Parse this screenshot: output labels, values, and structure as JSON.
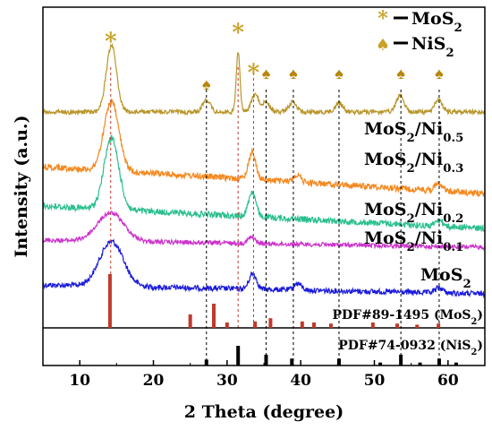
{
  "chart_data": {
    "type": "line",
    "xlabel": "2 Theta (degree)",
    "ylabel": "Intensity (a.u.)",
    "xlim": [
      5,
      65
    ],
    "x_ticks": [
      10,
      20,
      30,
      40,
      50,
      60
    ],
    "grid": false,
    "legend_position": "top-right",
    "legend": [
      {
        "marker": "asterisk",
        "label": "MoS",
        "sub": "2",
        "color": "#b8860b"
      },
      {
        "marker": "spade",
        "label": "NiS",
        "sub": "2",
        "color": "#b8860b"
      }
    ],
    "series": [
      {
        "label_main": "MoS",
        "label_sub": "2",
        "label_tail": "",
        "label_sub2": "",
        "color": "#1a1adc",
        "peaks": [
          {
            "x": 14.3,
            "h": 1.0
          },
          {
            "x": 33.5,
            "h": 0.35
          },
          {
            "x": 39.6,
            "h": 0.15
          },
          {
            "x": 58.8,
            "h": 0.12
          }
        ]
      },
      {
        "label_main": "MoS",
        "label_sub": "2",
        "label_tail": "/Ni",
        "label_sub2": "0.1",
        "color": "#cc33cc",
        "peaks": [
          {
            "x": 14.2,
            "h": 0.7
          },
          {
            "x": 33.3,
            "h": 0.15
          }
        ]
      },
      {
        "label_main": "MoS",
        "label_sub": "2",
        "label_tail": "/Ni",
        "label_sub2": "0.2",
        "color": "#2bbf8e",
        "peaks": [
          {
            "x": 14.3,
            "h": 1.45
          },
          {
            "x": 33.4,
            "h": 0.5
          },
          {
            "x": 58.8,
            "h": 0.12
          }
        ]
      },
      {
        "label_main": "MoS",
        "label_sub": "2",
        "label_tail": "/Ni",
        "label_sub2": "0.3",
        "color": "#f5881e",
        "peaks": [
          {
            "x": 14.3,
            "h": 1.4
          },
          {
            "x": 33.4,
            "h": 0.55
          },
          {
            "x": 39.5,
            "h": 0.15
          },
          {
            "x": 58.8,
            "h": 0.15
          }
        ]
      },
      {
        "label_main": "MoS",
        "label_sub": "2",
        "label_tail": "/Ni",
        "label_sub2": "0.5",
        "color": "#b8962a",
        "peaks": [
          {
            "x": 14.3,
            "h": 1.35
          },
          {
            "x": 31.5,
            "h": 1.25
          },
          {
            "x": 33.8,
            "h": 0.35
          },
          {
            "x": 27.2,
            "h": 0.25
          },
          {
            "x": 35.3,
            "h": 0.2
          },
          {
            "x": 38.9,
            "h": 0.2
          },
          {
            "x": 45.2,
            "h": 0.18
          },
          {
            "x": 53.5,
            "h": 0.35
          },
          {
            "x": 58.7,
            "h": 0.25
          }
        ]
      }
    ],
    "mos2_markers": [
      14.2,
      31.5,
      33.6
    ],
    "nis2_markers": [
      27.2,
      35.3,
      39.0,
      45.2,
      53.6,
      58.8
    ],
    "reference_patterns": [
      {
        "label": "PDF#89-1495 (MoS",
        "sub": "2",
        "tail": ")",
        "color": "#c0392b",
        "sticks": [
          [
            14.1,
            1.0
          ],
          [
            25.0,
            0.25
          ],
          [
            28.2,
            0.45
          ],
          [
            30.0,
            0.1
          ],
          [
            33.8,
            0.12
          ],
          [
            35.9,
            0.18
          ],
          [
            40.2,
            0.12
          ],
          [
            41.8,
            0.1
          ],
          [
            44.1,
            0.08
          ],
          [
            49.8,
            0.1
          ],
          [
            53.1,
            0.08
          ],
          [
            55.8,
            0.06
          ],
          [
            58.7,
            0.08
          ]
        ]
      },
      {
        "label": "PDF#74-0932 (NiS",
        "sub": "2",
        "tail": ")",
        "color": "#000000",
        "sticks": [
          [
            27.2,
            0.3
          ],
          [
            31.5,
            1.0
          ],
          [
            35.3,
            0.55
          ],
          [
            38.8,
            0.35
          ],
          [
            45.2,
            0.35
          ],
          [
            50.8,
            0.15
          ],
          [
            53.6,
            0.55
          ],
          [
            56.2,
            0.15
          ],
          [
            58.8,
            0.35
          ],
          [
            61.1,
            0.15
          ]
        ]
      }
    ]
  }
}
